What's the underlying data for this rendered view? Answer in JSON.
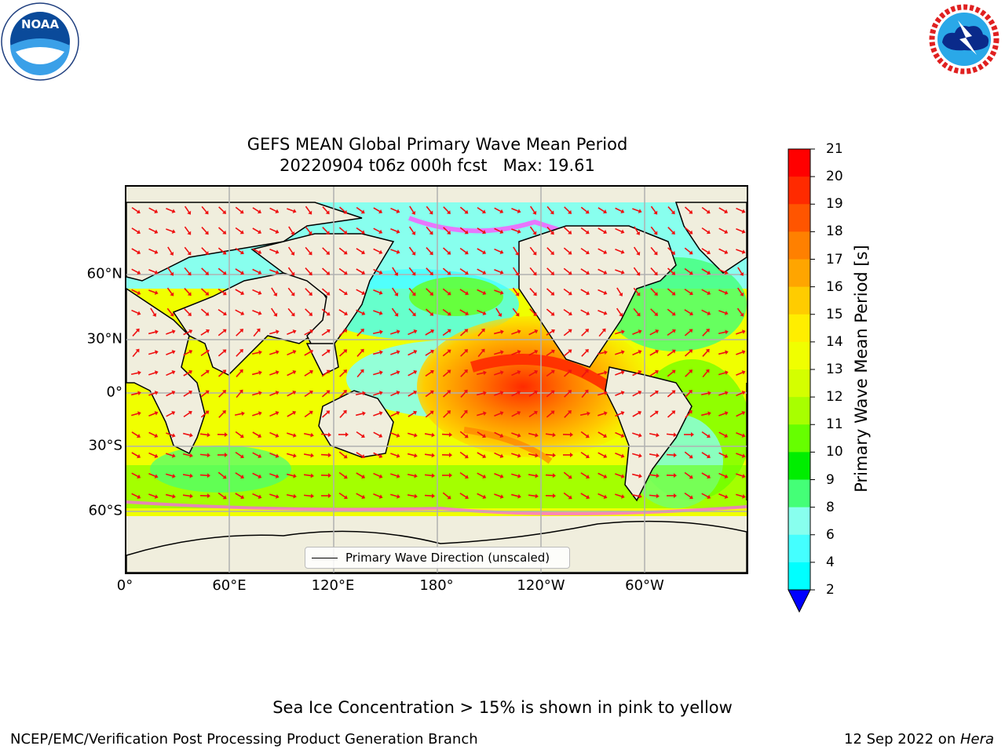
{
  "logos": {
    "left": {
      "text": "NOAA",
      "ring_text": "NATIONAL OCEANIC AND ATMOSPHERIC ADMINISTRATION · U.S. DEPARTMENT OF COMMERCE"
    },
    "right": {
      "ring_text": "NATIONAL WEATHER SERVICE"
    }
  },
  "chart": {
    "title_line1": "GEFS MEAN Global Primary Wave Mean Period",
    "title_line2": "20220904 t06z 000h fcst   Max: 19.61",
    "x_ticks": [
      "0°",
      "60°E",
      "120°E",
      "180°",
      "120°W",
      "60°W"
    ],
    "y_ticks": [
      "60°N",
      "30°N",
      "0°",
      "30°S",
      "60°S"
    ],
    "legend_label": "Primary Wave Direction (unscaled)"
  },
  "colorbar": {
    "title": "Primary Wave Mean Period [s]",
    "tick_labels": [
      "21",
      "20",
      "19",
      "18",
      "17",
      "16",
      "15",
      "14",
      "13",
      "12",
      "11",
      "10",
      "9",
      "8",
      "6",
      "4",
      "2"
    ],
    "colors": [
      "#ff0000",
      "#ff2a00",
      "#ff5500",
      "#ff8000",
      "#ffa500",
      "#ffcc00",
      "#ffee00",
      "#f0ff00",
      "#d4ff00",
      "#a8ff00",
      "#66ff00",
      "#00ee00",
      "#44ff77",
      "#88ffee",
      "#44ffff",
      "#00ffff",
      "#00ccff",
      "#0077ff",
      "#0000ff"
    ],
    "extend_color": "#0000ff"
  },
  "chart_data": {
    "type": "heatmap",
    "title": "GEFS MEAN Global Primary Wave Mean Period",
    "subtitle": "20220904 t06z 000h fcst   Max: 19.61",
    "variable": "Primary Wave Mean Period [s]",
    "max": 19.61,
    "colorbar_levels": [
      2,
      4,
      6,
      8,
      9,
      10,
      11,
      12,
      13,
      14,
      15,
      16,
      17,
      18,
      19,
      20,
      21
    ],
    "x_axis": {
      "ticks": [
        "0°",
        "60°E",
        "120°E",
        "180°",
        "120°W",
        "60°W"
      ],
      "range_deg": [
        0,
        360
      ]
    },
    "y_axis": {
      "ticks": [
        "60°N",
        "30°N",
        "0°",
        "30°S",
        "60°S"
      ],
      "range_deg": [
        -90,
        90
      ]
    },
    "grid": true,
    "legend_placement": "bottom-center",
    "overlay": "Primary Wave Direction (unscaled)"
  },
  "footer": {
    "note": "Sea Ice Concentration > 15% is shown in pink to yellow",
    "left": "NCEP/EMC/Verification Post Processing Product Generation Branch",
    "right_date": "12 Sep 2022 on ",
    "right_host": "Hera"
  }
}
